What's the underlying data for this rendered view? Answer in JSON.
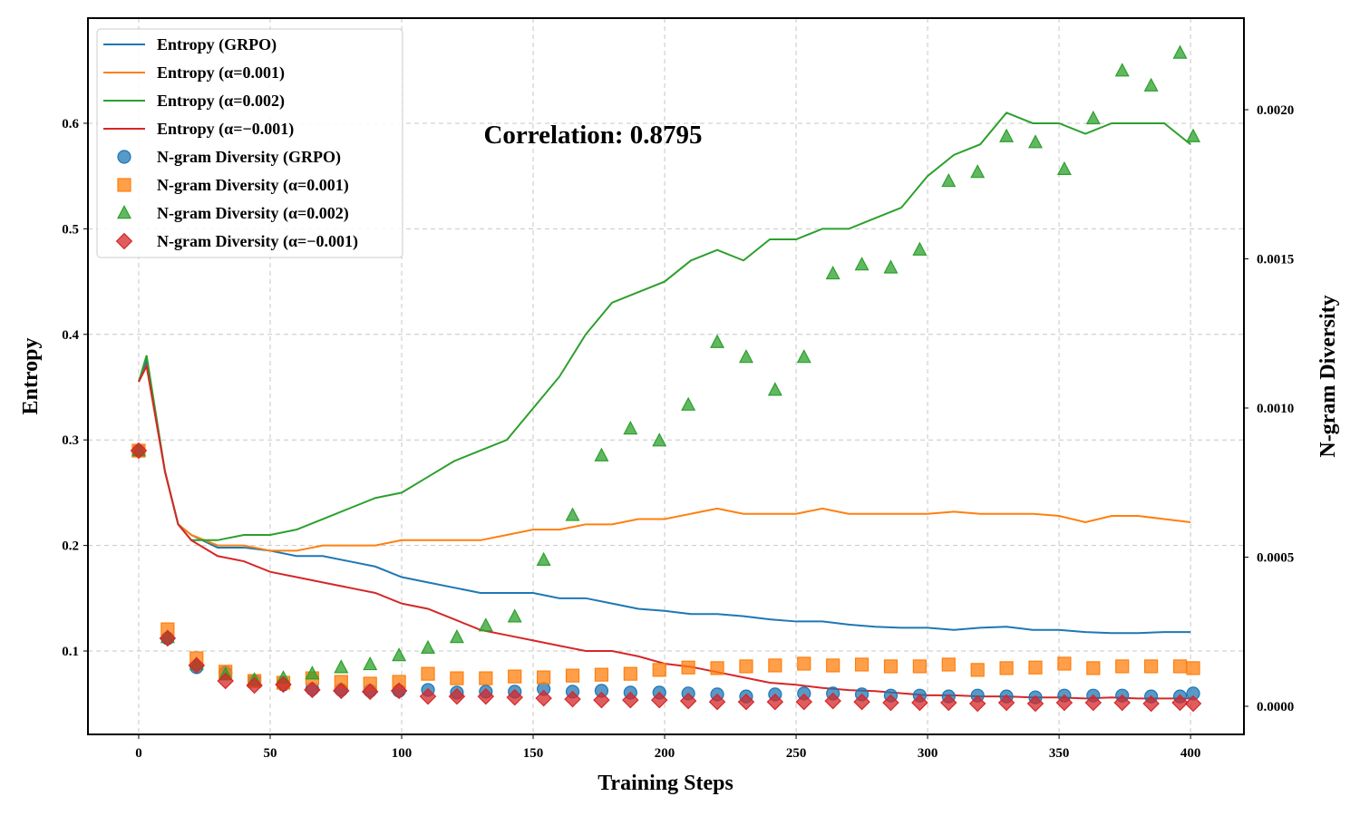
{
  "chart_data": {
    "type": "line+scatter",
    "xlabel": "Training Steps",
    "ylabel": "Entropy",
    "ylabel_right": "N-gram Diversity",
    "annotation": "Correlation: 0.8795",
    "xlim": [
      -19.3,
      420.3
    ],
    "ylim": [
      0.021,
      0.6996
    ],
    "ylim_right": [
      -9.42e-05,
      0.002307
    ],
    "xticks": [
      0,
      50,
      100,
      150,
      200,
      250,
      300,
      350,
      400
    ],
    "yticks": [
      "0.1",
      "0.2",
      "0.3",
      "0.4",
      "0.5",
      "0.6"
    ],
    "yticks_right": [
      "0.0000",
      "0.0005",
      "0.0010",
      "0.0015",
      "0.0020"
    ],
    "grid": true,
    "legend_placement": "top-left",
    "line_x": [
      0,
      3,
      10,
      15,
      20,
      30,
      40,
      50,
      60,
      70,
      80,
      90,
      100,
      110,
      120,
      130,
      140,
      150,
      160,
      170,
      180,
      190,
      200,
      210,
      220,
      230,
      240,
      250,
      260,
      270,
      280,
      290,
      300,
      310,
      320,
      330,
      340,
      350,
      360,
      370,
      380,
      390,
      400
    ],
    "lines": [
      {
        "name": "Entropy (GRPO)",
        "color": "#1f77b4",
        "values": [
          0.355,
          0.375,
          0.27,
          0.22,
          0.21,
          0.198,
          0.198,
          0.195,
          0.19,
          0.19,
          0.185,
          0.18,
          0.17,
          0.165,
          0.16,
          0.155,
          0.155,
          0.155,
          0.15,
          0.15,
          0.145,
          0.14,
          0.138,
          0.135,
          0.135,
          0.133,
          0.13,
          0.128,
          0.128,
          0.125,
          0.123,
          0.122,
          0.122,
          0.12,
          0.122,
          0.123,
          0.12,
          0.12,
          0.118,
          0.117,
          0.117,
          0.118,
          0.118
        ]
      },
      {
        "name": "Entropy (α=0.001)",
        "color": "#ff7f0e",
        "values": [
          0.355,
          0.37,
          0.27,
          0.22,
          0.21,
          0.2,
          0.2,
          0.195,
          0.195,
          0.2,
          0.2,
          0.2,
          0.205,
          0.205,
          0.205,
          0.205,
          0.21,
          0.215,
          0.215,
          0.22,
          0.22,
          0.225,
          0.225,
          0.23,
          0.235,
          0.23,
          0.23,
          0.23,
          0.235,
          0.23,
          0.23,
          0.23,
          0.23,
          0.232,
          0.23,
          0.23,
          0.23,
          0.228,
          0.222,
          0.228,
          0.228,
          0.225,
          0.222
        ]
      },
      {
        "name": "Entropy (α=0.002)",
        "color": "#2ca02c",
        "values": [
          0.355,
          0.38,
          0.27,
          0.22,
          0.205,
          0.205,
          0.21,
          0.21,
          0.215,
          0.225,
          0.235,
          0.245,
          0.25,
          0.265,
          0.28,
          0.29,
          0.3,
          0.33,
          0.36,
          0.4,
          0.43,
          0.44,
          0.45,
          0.47,
          0.48,
          0.47,
          0.49,
          0.49,
          0.5,
          0.5,
          0.51,
          0.52,
          0.55,
          0.57,
          0.58,
          0.61,
          0.6,
          0.6,
          0.59,
          0.6,
          0.6,
          0.6,
          0.58
        ]
      },
      {
        "name": "Entropy (α=−0.001)",
        "color": "#d62728",
        "values": [
          0.355,
          0.37,
          0.27,
          0.22,
          0.205,
          0.19,
          0.185,
          0.175,
          0.17,
          0.165,
          0.16,
          0.155,
          0.145,
          0.14,
          0.13,
          0.12,
          0.115,
          0.11,
          0.105,
          0.1,
          0.1,
          0.095,
          0.088,
          0.085,
          0.08,
          0.075,
          0.07,
          0.068,
          0.065,
          0.063,
          0.062,
          0.06,
          0.058,
          0.058,
          0.057,
          0.057,
          0.056,
          0.056,
          0.055,
          0.056,
          0.055,
          0.055,
          0.055
        ]
      }
    ],
    "scatter_x": [
      0,
      11,
      22,
      33,
      44,
      55,
      66,
      77,
      88,
      99,
      110,
      121,
      132,
      143,
      154,
      165,
      176,
      187,
      198,
      209,
      220,
      231,
      242,
      253,
      264,
      275,
      286,
      297,
      308,
      319,
      330,
      341,
      352,
      363,
      374,
      385,
      396,
      401
    ],
    "scatter": [
      {
        "name": "N-gram Diversity (GRPO)",
        "color": "#1f77b4",
        "marker": "circle",
        "values": [
          0.000857,
          0.000228,
          0.000131,
          0.000112,
          8.5e-05,
          7.3e-05,
          5.8e-05,
          5.5e-05,
          5.2e-05,
          5.2e-05,
          5.5e-05,
          4.6e-05,
          4.9e-05,
          4.9e-05,
          5.8e-05,
          4.9e-05,
          5.2e-05,
          4.6e-05,
          4.6e-05,
          4.3e-05,
          4e-05,
          3.3e-05,
          4e-05,
          4.3e-05,
          4.3e-05,
          4e-05,
          3.6e-05,
          3.6e-05,
          3.3e-05,
          3.6e-05,
          3.3e-05,
          3e-05,
          3.6e-05,
          3.6e-05,
          3.6e-05,
          3.3e-05,
          3.3e-05,
          4.3e-05
        ]
      },
      {
        "name": "N-gram Diversity (α=0.001)",
        "color": "#ff7f0e",
        "marker": "square",
        "values": [
          0.000857,
          0.000258,
          0.000161,
          0.000116,
          8.5e-05,
          7.9e-05,
          9.4e-05,
          8.2e-05,
          7.6e-05,
          8.2e-05,
          0.000109,
          9.4e-05,
          9.4e-05,
          0.0001,
          9.7e-05,
          0.000103,
          0.000106,
          0.000109,
          0.000122,
          0.00013,
          0.000128,
          0.000134,
          0.000137,
          0.000143,
          0.000137,
          0.00014,
          0.000134,
          0.000134,
          0.00014,
          0.000122,
          0.000128,
          0.00013,
          0.000143,
          0.000128,
          0.000134,
          0.000134,
          0.000134,
          0.000128
        ]
      },
      {
        "name": "N-gram Diversity (α=0.002)",
        "color": "#2ca02c",
        "marker": "triangle",
        "values": [
          0.000857,
          0.000231,
          0.00014,
          0.000106,
          8.8e-05,
          9.4e-05,
          0.000109,
          0.00013,
          0.00014,
          0.00017,
          0.000195,
          0.000231,
          0.00027,
          0.0003,
          0.00049,
          0.00064,
          0.00084,
          0.00093,
          0.00089,
          0.00101,
          0.00122,
          0.00117,
          0.00106,
          0.00117,
          0.00145,
          0.00148,
          0.00147,
          0.00153,
          0.00176,
          0.00179,
          0.00191,
          0.00189,
          0.0018,
          0.00197,
          0.00213,
          0.00208,
          0.00219,
          0.00191
        ]
      },
      {
        "name": "N-gram Diversity (α=−0.001)",
        "color": "#d62728",
        "marker": "diamond",
        "values": [
          0.000857,
          0.000228,
          0.000137,
          8.5e-05,
          7e-05,
          7.3e-05,
          5.5e-05,
          5.2e-05,
          4.9e-05,
          5.2e-05,
          3.3e-05,
          3.3e-05,
          3.3e-05,
          3e-05,
          2.7e-05,
          2.4e-05,
          2.1e-05,
          2.1e-05,
          2.1e-05,
          1.8e-05,
          1.5e-05,
          1.5e-05,
          1.5e-05,
          1.5e-05,
          1.8e-05,
          1.5e-05,
          1.2e-05,
          1.2e-05,
          1.2e-05,
          9e-06,
          1.2e-05,
          9e-06,
          1.2e-05,
          1.2e-05,
          1.2e-05,
          9e-06,
          1.2e-05,
          9e-06
        ]
      }
    ]
  }
}
